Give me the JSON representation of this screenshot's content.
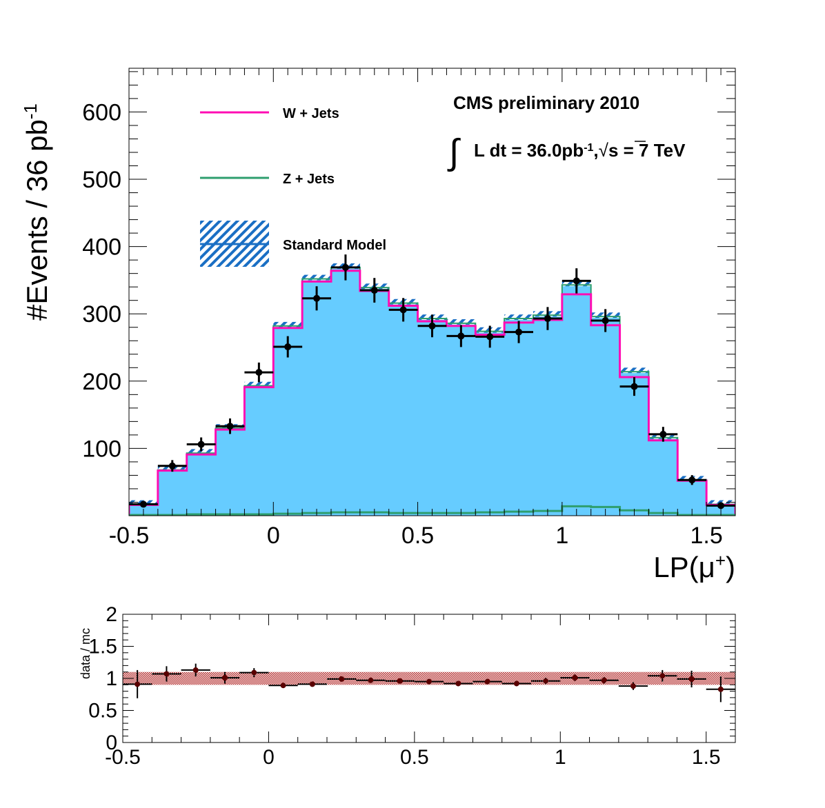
{
  "chart_data": [
    {
      "type": "histogram",
      "xlabel_main": "LP(μ",
      "xlabel_sup": "+",
      "xlabel_close": ")",
      "ylabel_main": "#Events / 36 pb",
      "ylabel_sup": "-1",
      "xlim": [
        -0.5,
        1.6
      ],
      "ylim": [
        0,
        665
      ],
      "x_ticks": [
        "-0.5",
        "0",
        "0.5",
        "1",
        "1.5"
      ],
      "x_tick_values": [
        -0.5,
        0,
        0.5,
        1,
        1.5
      ],
      "y_ticks": [
        "100",
        "200",
        "300",
        "400",
        "500",
        "600"
      ],
      "y_tick_values": [
        100,
        200,
        300,
        400,
        500,
        600
      ],
      "bin_edges": [
        -0.5,
        -0.4,
        -0.3,
        -0.2,
        -0.1,
        0.0,
        0.1,
        0.2,
        0.3,
        0.4,
        0.5,
        0.6,
        0.7,
        0.8,
        0.9,
        1.0,
        1.1,
        1.2,
        1.3,
        1.4,
        1.5,
        1.6
      ],
      "annotation": {
        "line1": "CMS preliminary 2010",
        "integral": "∫",
        "lumi_a": "L dt = 36.0pb",
        "lumi_sup": "-1",
        "lumi_b": ",",
        "sqrt": "√",
        "lumi_c": "s = 7 TeV"
      },
      "legend": [
        {
          "label": "W + Jets",
          "color": "#ff0cb3"
        },
        {
          "label": "Z + Jets",
          "color": "#2e9e6e"
        },
        {
          "label": "Standard Model",
          "color": "#1a6fc4"
        }
      ],
      "series": [
        {
          "name": "W + Jets",
          "color": "#ff0cb3",
          "values": [
            16,
            67,
            91,
            128,
            191,
            279,
            348,
            364,
            334,
            312,
            289,
            282,
            269,
            287,
            291,
            329,
            283,
            206,
            112,
            52,
            16
          ]
        },
        {
          "name": "Z + Jets",
          "color": "#2e9e6e",
          "values": [
            1,
            1,
            2,
            2,
            2,
            3,
            4,
            5,
            5,
            4,
            4,
            4,
            5,
            6,
            7,
            14,
            13,
            8,
            4,
            1,
            1
          ]
        },
        {
          "name": "Standard Model",
          "color": "#1a6fc4",
          "values": [
            17,
            68,
            93,
            130,
            193,
            282,
            352,
            369,
            339,
            316,
            293,
            286,
            274,
            293,
            298,
            343,
            296,
            214,
            116,
            53,
            17
          ]
        },
        {
          "name": "data",
          "color": "#000000",
          "x": [
            -0.45,
            -0.35,
            -0.25,
            -0.15,
            -0.05,
            0.05,
            0.15,
            0.25,
            0.35,
            0.45,
            0.55,
            0.65,
            0.75,
            0.85,
            0.95,
            1.05,
            1.15,
            1.25,
            1.35,
            1.45,
            1.55
          ],
          "values": [
            17,
            74,
            106,
            133,
            213,
            251,
            323,
            369,
            335,
            306,
            282,
            267,
            266,
            273,
            293,
            349,
            290,
            192,
            121,
            53,
            15
          ]
        }
      ]
    },
    {
      "type": "scatter",
      "ylabel": "data / mc",
      "xlim": [
        -0.5,
        1.6
      ],
      "ylim": [
        0,
        2
      ],
      "x_ticks": [
        "-0.5",
        "0",
        "0.5",
        "1",
        "1.5"
      ],
      "x_tick_values": [
        -0.5,
        0,
        0.5,
        1,
        1.5
      ],
      "y_ticks": [
        "0",
        "0.5",
        "1",
        "1.5",
        "2"
      ],
      "y_tick_values": [
        0,
        0.5,
        1,
        1.5,
        2
      ],
      "band": [
        0.9,
        1.1
      ],
      "band_color": "#a30000",
      "x": [
        -0.45,
        -0.35,
        -0.25,
        -0.15,
        -0.05,
        0.05,
        0.15,
        0.25,
        0.35,
        0.45,
        0.55,
        0.65,
        0.75,
        0.85,
        0.95,
        1.05,
        1.15,
        1.25,
        1.35,
        1.45,
        1.55
      ],
      "values": [
        0.91,
        1.07,
        1.13,
        1.01,
        1.09,
        0.89,
        0.91,
        0.99,
        0.97,
        0.96,
        0.95,
        0.92,
        0.95,
        0.92,
        0.96,
        1.01,
        0.97,
        0.88,
        1.04,
        0.99,
        0.83
      ],
      "errors": [
        0.22,
        0.12,
        0.1,
        0.09,
        0.07,
        0.04,
        0.04,
        0.04,
        0.04,
        0.04,
        0.04,
        0.04,
        0.04,
        0.04,
        0.05,
        0.05,
        0.05,
        0.06,
        0.09,
        0.13,
        0.2
      ]
    }
  ]
}
